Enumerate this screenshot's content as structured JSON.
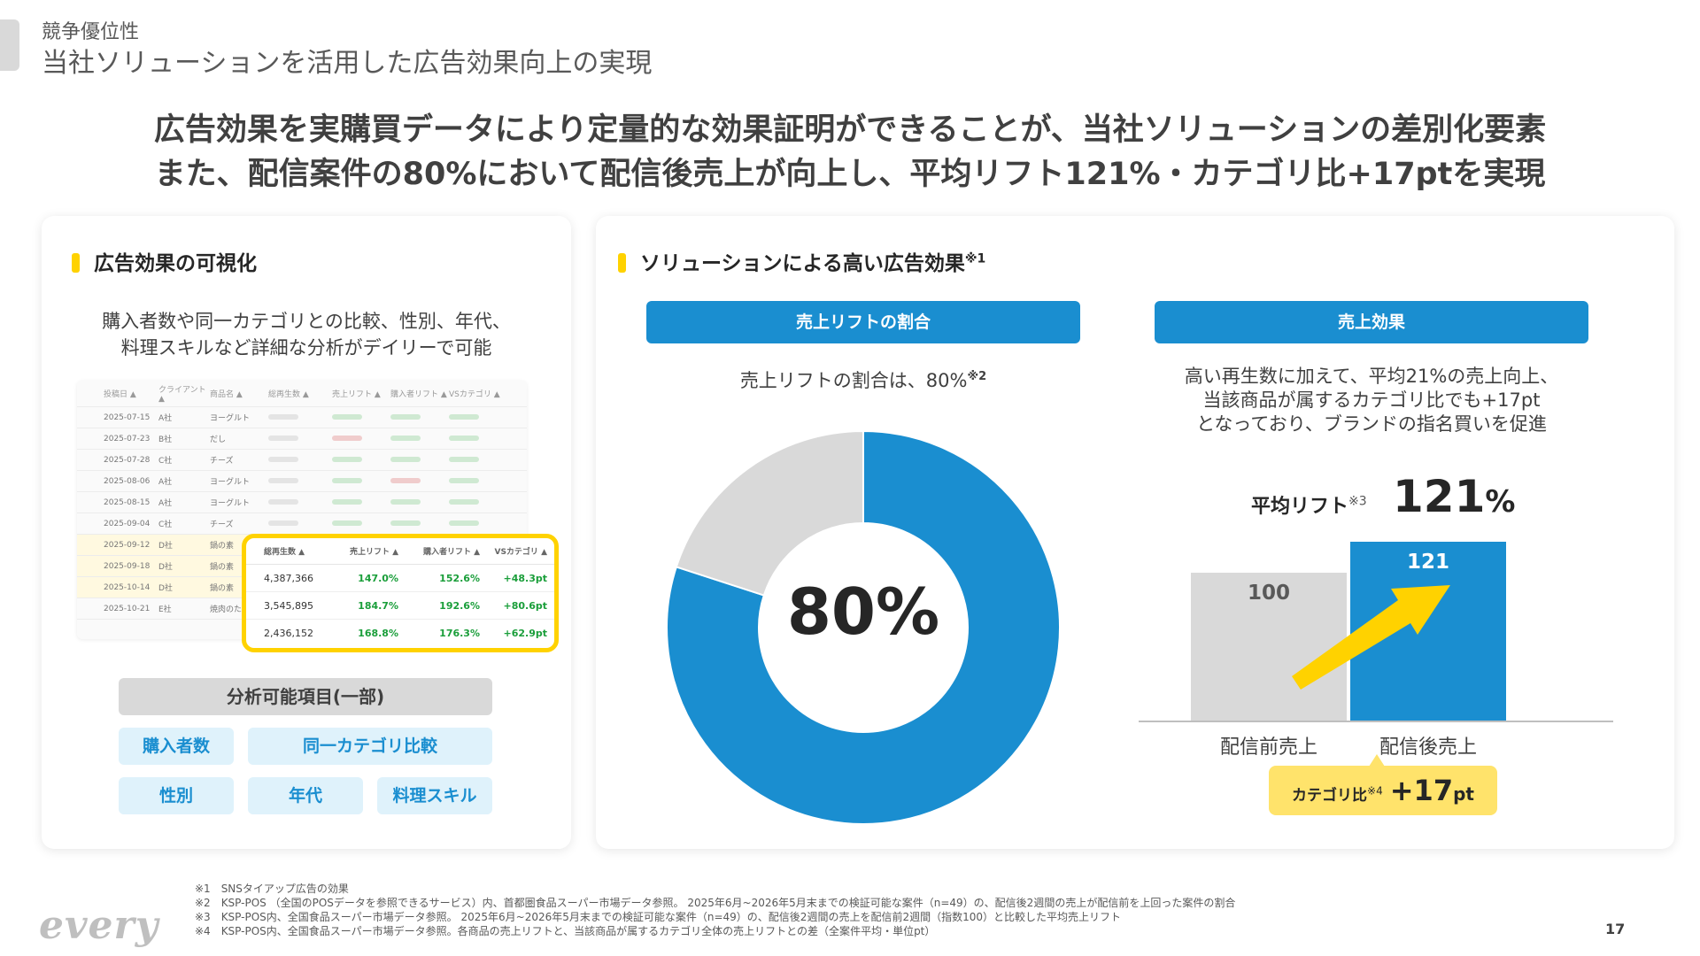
{
  "header": {
    "section": "競争優位性",
    "title": "当社ソリューションを活用した広告効果向上の実現"
  },
  "headline": {
    "line1": "広告効果を実購買データにより定量的な効果証明ができることが、当社ソリューションの差別化要素",
    "line2": "また、配信案件の80%において配信後売上が向上し、平均リフト121%・カテゴリ比+17ptを実現"
  },
  "left_card": {
    "heading": "広告効果の可視化",
    "desc_line1": "購入者数や同一カテゴリとの比較、性別、年代、",
    "desc_line2": "料理スキルなど詳細な分析がデイリーで可能",
    "table": {
      "headers": [
        "投稿日 ▲",
        "クライアント ▲",
        "商品名 ▲",
        "総再生数 ▲",
        "売上リフト ▲",
        "購入者リフト ▲",
        "VSカテゴリ ▲"
      ],
      "rows": [
        {
          "date": "2025-07-15",
          "client": "A社",
          "product": "ヨーグルト"
        },
        {
          "date": "2025-07-23",
          "client": "B社",
          "product": "だし"
        },
        {
          "date": "2025-07-28",
          "client": "C社",
          "product": "チーズ"
        },
        {
          "date": "2025-08-06",
          "client": "A社",
          "product": "ヨーグルト"
        },
        {
          "date": "2025-08-15",
          "client": "A社",
          "product": "ヨーグルト"
        },
        {
          "date": "2025-09-04",
          "client": "C社",
          "product": "チーズ"
        },
        {
          "date": "2025-09-12",
          "client": "D社",
          "product": "鍋の素"
        },
        {
          "date": "2025-09-18",
          "client": "D社",
          "product": "鍋の素"
        },
        {
          "date": "2025-10-14",
          "client": "D社",
          "product": "鍋の素"
        },
        {
          "date": "2025-10-21",
          "client": "E社",
          "product": "焼肉のたれ"
        }
      ]
    },
    "zoom": {
      "headers": [
        "総再生数 ▲",
        "売上リフト ▲",
        "購入者リフト ▲",
        "VSカテゴリ ▲"
      ],
      "rows": [
        {
          "views": "4,387,366",
          "sales_lift": "147.0%",
          "buyer_lift": "152.6%",
          "vs_cat": "+48.3pt"
        },
        {
          "views": "3,545,895",
          "sales_lift": "184.7%",
          "buyer_lift": "192.6%",
          "vs_cat": "+80.6pt"
        },
        {
          "views": "2,436,152",
          "sales_lift": "168.8%",
          "buyer_lift": "176.3%",
          "vs_cat": "+62.9pt"
        }
      ]
    },
    "analysis_title": "分析可能項目(一部)",
    "tags": [
      "購入者数",
      "同一カテゴリ比較",
      "性別",
      "年代",
      "料理スキル"
    ]
  },
  "right_card": {
    "heading": "ソリューションによる高い広告効果",
    "heading_note": "※1",
    "lift_ratio": {
      "pill": "売上リフトの割合",
      "text": "売上リフトの割合は、80%",
      "note": "※2",
      "center_label": "80%"
    },
    "sales_effect": {
      "pill": "売上効果",
      "line1": "高い再生数に加えて、平均21%の売上向上、",
      "line2": "当該商品が属するカテゴリ比でも+17pt",
      "line3": "となっており、ブランドの指名買いを促進",
      "avg_lift_label": "平均リフト",
      "avg_lift_note": "※3",
      "avg_lift_value": "121",
      "avg_lift_unit": "%",
      "category_label": "カテゴリ比",
      "category_note": "※4",
      "category_value": "+17",
      "category_unit": "pt"
    }
  },
  "chart_data": [
    {
      "type": "pie",
      "title": "",
      "categories": [
        "売上リフト",
        ""
      ],
      "values": [
        80,
        20
      ],
      "colors": [
        "#1a8ed0",
        "#d9d9d9"
      ]
    },
    {
      "type": "bar",
      "title": "",
      "categories": [
        "配信前売上",
        "配信後売上"
      ],
      "values": [
        100,
        121
      ],
      "colors": [
        "#d9d9d9",
        "#1a8ed0"
      ],
      "ylim": [
        0,
        121
      ]
    }
  ],
  "footnotes": [
    "※1　SNSタイアップ広告の効果",
    "※2　KSP-POS （全国のPOSデータを参照できるサービス）内、首都圏食品スーパー市場データ参照。 2025年6月~2026年5月末までの検証可能な案件（n=49）の、配信後2週間の売上が配信前を上回った案件の割合",
    "※3　KSP-POS内、全国食品スーパー市場データ参照。 2025年6月~2026年5月末までの検証可能な案件（n=49）の、配信後2週間の売上を配信前2週間（指数100）と比較した平均売上リフト",
    "※4　KSP-POS内、全国食品スーパー市場データ参照。各商品の売上リフトと、当該商品が属するカテゴリ全体の売上リフトとの差（全案件平均・単位pt）"
  ],
  "logo": "every",
  "page_number": "17",
  "colors": {
    "accent_yellow": "#ffd200",
    "brand_blue": "#1a8ed0",
    "gray": "#d9d9d9"
  }
}
